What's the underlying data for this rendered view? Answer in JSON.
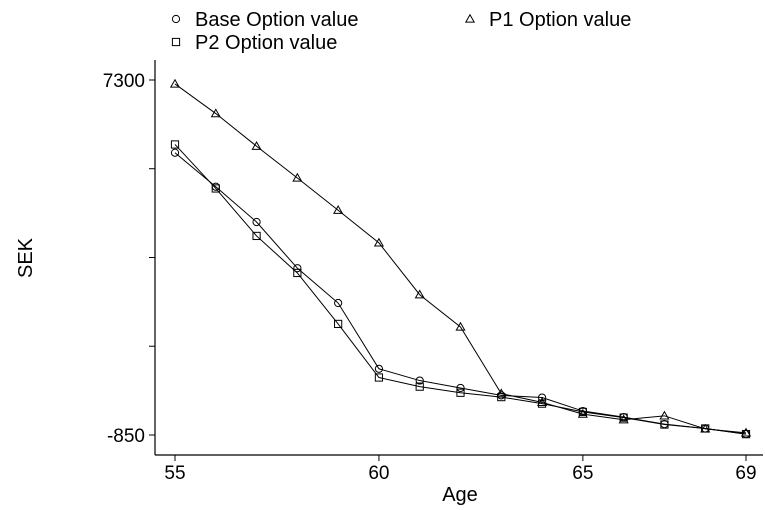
{
  "chart_data": {
    "type": "line",
    "title": "",
    "xlabel": "Age",
    "ylabel": "SEK",
    "xlim": [
      55,
      69
    ],
    "ylim": [
      -850,
      7300
    ],
    "x_ticks": [
      55,
      60,
      65,
      69
    ],
    "y_ticks": [
      -850,
      1188,
      3225,
      5263,
      7300
    ],
    "y_tick_labels": [
      "-850",
      "",
      "",
      "",
      "7300"
    ],
    "x": [
      55,
      56,
      57,
      58,
      59,
      60,
      61,
      62,
      63,
      64,
      65,
      66,
      67,
      68,
      69
    ],
    "grid": false,
    "legend": "top",
    "series": [
      {
        "name": "Base Option value",
        "marker": "circle",
        "values": [
          5630,
          4850,
          4040,
          2980,
          2180,
          670,
          400,
          230,
          60,
          10,
          -300,
          -440,
          -600,
          -700,
          -830
        ]
      },
      {
        "name": "P1 Option value",
        "marker": "triangle",
        "values": [
          7210,
          6530,
          5780,
          5050,
          4310,
          3560,
          2370,
          1630,
          100,
          -100,
          -370,
          -500,
          -410,
          -710,
          -800
        ]
      },
      {
        "name": "P2 Option value",
        "marker": "square",
        "values": [
          5820,
          4810,
          3720,
          2870,
          1700,
          470,
          260,
          120,
          20,
          -130,
          -320,
          -450,
          -610,
          -700,
          -830
        ]
      }
    ]
  }
}
